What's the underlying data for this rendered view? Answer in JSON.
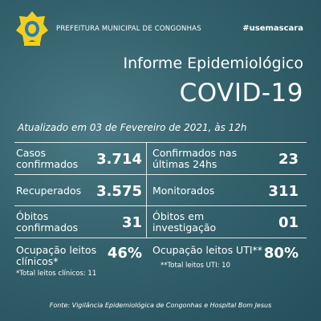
{
  "header": {
    "organization": "PREFEITURA MUNICIPAL DE CONGONHAS",
    "hashtag": "#usemascara"
  },
  "report": {
    "title": "Informe Epidemiológico",
    "subtitle": "COVID-19",
    "updated": "Atualizado em 03 de Fevereiro de 2021, às 12h"
  },
  "stats": [
    {
      "label": "Casos confirmados",
      "value": "3.714"
    },
    {
      "label": "Confirmados nas últimas 24hs",
      "value": "23"
    },
    {
      "label": "Recuperados",
      "value": "3.575"
    },
    {
      "label": "Monitorados",
      "value": "311"
    },
    {
      "label": "Óbitos confirmados",
      "value": "31"
    },
    {
      "label": "Óbitos em investigação",
      "value": "01"
    }
  ],
  "occupancy": [
    {
      "label": "Ocupação leitos clínicos*",
      "value": "46%",
      "note": "*Total leitos clínicos: 11"
    },
    {
      "label": "Ocupação leitos UTI**",
      "value": "80%",
      "note": "**Total leitos UTI: 10"
    }
  ],
  "footer": {
    "source": "Fonte: Vigilância Epidemiológica de Congonhas e Hospital Bom Jesus"
  }
}
